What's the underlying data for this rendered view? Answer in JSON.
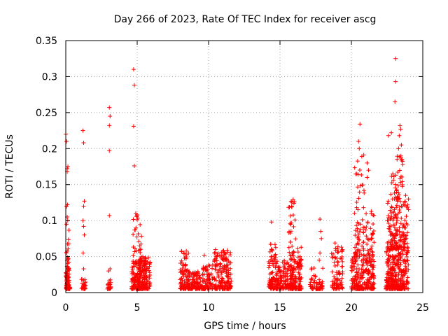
{
  "chart_data": {
    "type": "scatter",
    "title": "Day 266 of 2023, Rate Of TEC Index for receiver ascg",
    "xlabel": "GPS time / hours",
    "ylabel": "ROTI / TECUs",
    "xlim": [
      0,
      25
    ],
    "ylim": [
      0,
      0.35
    ],
    "xticks": [
      "0",
      "5",
      "10",
      "15",
      "20",
      "25"
    ],
    "yticks": [
      "0",
      "0.05",
      "0.1",
      "0.15",
      "0.2",
      "0.25",
      "0.3",
      "0.35"
    ],
    "grid": true,
    "marker": "+",
    "color": "#ff0000",
    "clusters": [
      {
        "x": [
          0.0,
          0.3
        ],
        "y": [
          0.005,
          0.03
        ],
        "n": 70
      },
      {
        "x": [
          0.0,
          0.25
        ],
        "y": [
          0.03,
          0.12
        ],
        "n": 30
      },
      {
        "x": [
          1.1,
          1.4
        ],
        "y": [
          0.005,
          0.02
        ],
        "n": 25
      },
      {
        "x": [
          2.9,
          3.2
        ],
        "y": [
          0.005,
          0.018
        ],
        "n": 20
      },
      {
        "x": [
          4.6,
          5.2
        ],
        "y": [
          0.005,
          0.04
        ],
        "n": 90
      },
      {
        "x": [
          4.7,
          5.3
        ],
        "y": [
          0.04,
          0.11
        ],
        "n": 40
      },
      {
        "x": [
          5.0,
          5.9
        ],
        "y": [
          0.005,
          0.05
        ],
        "n": 160
      },
      {
        "x": [
          8.0,
          8.6
        ],
        "y": [
          0.005,
          0.06
        ],
        "n": 90
      },
      {
        "x": [
          8.6,
          9.6
        ],
        "y": [
          0.005,
          0.03
        ],
        "n": 110
      },
      {
        "x": [
          9.6,
          10.3
        ],
        "y": [
          0.005,
          0.04
        ],
        "n": 70
      },
      {
        "x": [
          10.4,
          11.6
        ],
        "y": [
          0.005,
          0.06
        ],
        "n": 170
      },
      {
        "x": [
          14.2,
          16.5
        ],
        "y": [
          0.005,
          0.045
        ],
        "n": 320
      },
      {
        "x": [
          14.3,
          14.7
        ],
        "y": [
          0.045,
          0.075
        ],
        "n": 20
      },
      {
        "x": [
          15.6,
          16.1
        ],
        "y": [
          0.045,
          0.13
        ],
        "n": 40
      },
      {
        "x": [
          16.2,
          16.5
        ],
        "y": [
          0.04,
          0.065
        ],
        "n": 15
      },
      {
        "x": [
          17.1,
          18.0
        ],
        "y": [
          0.005,
          0.035
        ],
        "n": 60
      },
      {
        "x": [
          18.6,
          19.4
        ],
        "y": [
          0.005,
          0.07
        ],
        "n": 90
      },
      {
        "x": [
          20.0,
          21.6
        ],
        "y": [
          0.005,
          0.05
        ],
        "n": 220
      },
      {
        "x": [
          20.2,
          20.9
        ],
        "y": [
          0.05,
          0.195
        ],
        "n": 70
      },
      {
        "x": [
          21.0,
          21.6
        ],
        "y": [
          0.05,
          0.125
        ],
        "n": 40
      },
      {
        "x": [
          22.4,
          24.0
        ],
        "y": [
          0.005,
          0.06
        ],
        "n": 320
      },
      {
        "x": [
          22.5,
          24.0
        ],
        "y": [
          0.06,
          0.13
        ],
        "n": 170
      },
      {
        "x": [
          22.7,
          23.6
        ],
        "y": [
          0.13,
          0.19
        ],
        "n": 40
      }
    ],
    "points": [
      {
        "x": 0.0,
        "y": 0.22
      },
      {
        "x": 0.05,
        "y": 0.21
      },
      {
        "x": 0.1,
        "y": 0.172
      },
      {
        "x": 0.1,
        "y": 0.168
      },
      {
        "x": 0.15,
        "y": 0.175
      },
      {
        "x": 0.12,
        "y": 0.122
      },
      {
        "x": 0.1,
        "y": 0.105
      },
      {
        "x": 0.05,
        "y": 0.095
      },
      {
        "x": 1.2,
        "y": 0.225
      },
      {
        "x": 1.25,
        "y": 0.208
      },
      {
        "x": 1.3,
        "y": 0.127
      },
      {
        "x": 1.25,
        "y": 0.12
      },
      {
        "x": 1.2,
        "y": 0.1
      },
      {
        "x": 1.25,
        "y": 0.092
      },
      {
        "x": 1.3,
        "y": 0.08
      },
      {
        "x": 1.22,
        "y": 0.055
      },
      {
        "x": 1.25,
        "y": 0.033
      },
      {
        "x": 3.05,
        "y": 0.257
      },
      {
        "x": 3.1,
        "y": 0.245
      },
      {
        "x": 3.05,
        "y": 0.232
      },
      {
        "x": 3.05,
        "y": 0.197
      },
      {
        "x": 3.05,
        "y": 0.107
      },
      {
        "x": 3.1,
        "y": 0.033
      },
      {
        "x": 3.0,
        "y": 0.03
      },
      {
        "x": 4.75,
        "y": 0.31
      },
      {
        "x": 4.8,
        "y": 0.288
      },
      {
        "x": 4.75,
        "y": 0.231
      },
      {
        "x": 4.8,
        "y": 0.176
      },
      {
        "x": 4.9,
        "y": 0.11
      },
      {
        "x": 5.0,
        "y": 0.108
      },
      {
        "x": 9.7,
        "y": 0.052
      },
      {
        "x": 14.4,
        "y": 0.098
      },
      {
        "x": 17.8,
        "y": 0.102
      },
      {
        "x": 17.85,
        "y": 0.085
      },
      {
        "x": 17.9,
        "y": 0.075
      },
      {
        "x": 17.8,
        "y": 0.055
      },
      {
        "x": 17.75,
        "y": 0.045
      },
      {
        "x": 20.6,
        "y": 0.234
      },
      {
        "x": 20.5,
        "y": 0.21
      },
      {
        "x": 20.55,
        "y": 0.2
      },
      {
        "x": 21.1,
        "y": 0.18
      },
      {
        "x": 21.2,
        "y": 0.17
      },
      {
        "x": 21.1,
        "y": 0.16
      },
      {
        "x": 22.6,
        "y": 0.218
      },
      {
        "x": 22.8,
        "y": 0.222
      },
      {
        "x": 23.1,
        "y": 0.325
      },
      {
        "x": 23.1,
        "y": 0.293
      },
      {
        "x": 23.05,
        "y": 0.265
      },
      {
        "x": 23.4,
        "y": 0.232
      },
      {
        "x": 23.45,
        "y": 0.227
      },
      {
        "x": 23.35,
        "y": 0.218
      },
      {
        "x": 23.5,
        "y": 0.205
      },
      {
        "x": 23.3,
        "y": 0.2
      },
      {
        "x": 23.2,
        "y": 0.185
      },
      {
        "x": 23.6,
        "y": 0.178
      },
      {
        "x": 22.9,
        "y": 0.165
      },
      {
        "x": 23.8,
        "y": 0.135
      },
      {
        "x": 24.0,
        "y": 0.13
      }
    ]
  }
}
